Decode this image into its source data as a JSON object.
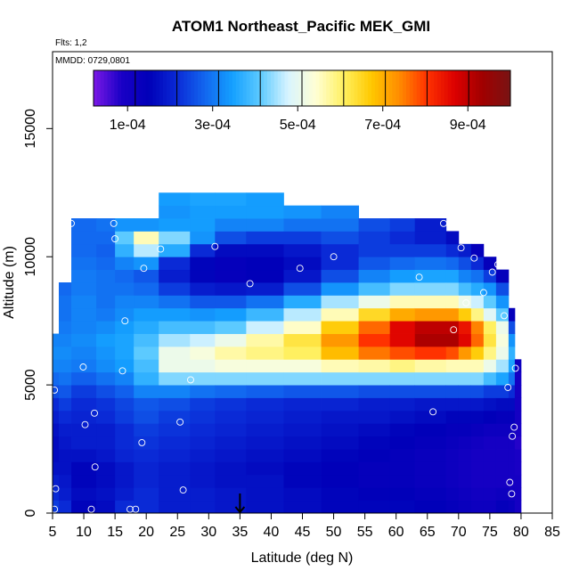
{
  "chart_data": {
    "type": "heatmap",
    "title": "ATOM1 Northeast_Pacific MEK_GMI",
    "notes": [
      "Flts: 1,2",
      "MMDD: 0729,0801"
    ],
    "xlabel": "Latitude (deg N)",
    "ylabel": "Altitude (m)",
    "xlim": [
      5,
      85
    ],
    "ylim": [
      0,
      18000
    ],
    "xticks": [
      5,
      10,
      15,
      20,
      25,
      30,
      35,
      40,
      45,
      50,
      55,
      60,
      65,
      70,
      75,
      80,
      85
    ],
    "yticks": [
      0,
      5000,
      10000,
      15000
    ],
    "grid": false,
    "colorbar": {
      "min": 2e-05,
      "max": 0.001,
      "ticks": [
        0.0001,
        0.0003,
        0.0005,
        0.0007,
        0.0009
      ],
      "tick_labels": [
        "1e-04",
        "3e-04",
        "5e-04",
        "7e-04",
        "9e-04"
      ],
      "colors": [
        "#7b18e6",
        "#1a00c6",
        "#0000b8",
        "#0a2ad6",
        "#1266ef",
        "#14a0ff",
        "#5ccaff",
        "#d8f4ff",
        "#ffffd4",
        "#fff060",
        "#ffc800",
        "#ff8c00",
        "#ff3200",
        "#dc0000",
        "#a00000",
        "#781414"
      ]
    },
    "arrow_marker_x": 35,
    "value_scale": "fraction of colorbar range (0 = 2e-05, 1 = 1e-03)",
    "columns": [
      {
        "x0": 5,
        "x1": 6,
        "ymax": 7000,
        "v": [
          0.22,
          0.2,
          0.18,
          0.16,
          0.15,
          0.15,
          0.16,
          0.18,
          0.2,
          0.24,
          0.27,
          0.3,
          0.31,
          0.3
        ]
      },
      {
        "x0": 6,
        "x1": 8,
        "ymax": 9000,
        "v": [
          0.2,
          0.18,
          0.17,
          0.16,
          0.16,
          0.17,
          0.18,
          0.2,
          0.22,
          0.25,
          0.28,
          0.3,
          0.31,
          0.3,
          0.29,
          0.28,
          0.28,
          0.27
        ]
      },
      {
        "x0": 8,
        "x1": 12,
        "ymax": 11500,
        "v": [
          0.14,
          0.15,
          0.14,
          0.14,
          0.16,
          0.18,
          0.18,
          0.19,
          0.2,
          0.22,
          0.26,
          0.29,
          0.3,
          0.31,
          0.3,
          0.3,
          0.3,
          0.29,
          0.29,
          0.28,
          0.27,
          0.27,
          0.27
        ]
      },
      {
        "x0": 12,
        "x1": 15,
        "ymax": 11500,
        "v": [
          0.15,
          0.16,
          0.15,
          0.15,
          0.17,
          0.18,
          0.18,
          0.2,
          0.21,
          0.24,
          0.28,
          0.31,
          0.32,
          0.33,
          0.31,
          0.29,
          0.28,
          0.28,
          0.28,
          0.27,
          0.26,
          0.27,
          0.28
        ]
      },
      {
        "x0": 15,
        "x1": 18,
        "ymax": 11500,
        "v": [
          0.2,
          0.18,
          0.17,
          0.17,
          0.19,
          0.2,
          0.2,
          0.22,
          0.23,
          0.26,
          0.3,
          0.33,
          0.34,
          0.34,
          0.33,
          0.31,
          0.3,
          0.28,
          0.27,
          0.3,
          0.36,
          0.4,
          0.32
        ]
      },
      {
        "x0": 18,
        "x1": 22,
        "ymax": 11500,
        "v": [
          0.2,
          0.2,
          0.19,
          0.19,
          0.2,
          0.21,
          0.22,
          0.24,
          0.25,
          0.3,
          0.36,
          0.38,
          0.4,
          0.38,
          0.35,
          0.33,
          0.3,
          0.27,
          0.25,
          0.32,
          0.45,
          0.55,
          0.32
        ]
      },
      {
        "x0": 22,
        "x1": 27,
        "ymax": 12500,
        "v": [
          0.18,
          0.18,
          0.18,
          0.18,
          0.19,
          0.2,
          0.21,
          0.22,
          0.24,
          0.3,
          0.42,
          0.5,
          0.5,
          0.44,
          0.38,
          0.33,
          0.28,
          0.22,
          0.18,
          0.2,
          0.35,
          0.42,
          0.33,
          0.32,
          0.33
        ]
      },
      {
        "x0": 27,
        "x1": 31,
        "ymax": 12500,
        "v": [
          0.18,
          0.18,
          0.17,
          0.17,
          0.18,
          0.19,
          0.2,
          0.21,
          0.22,
          0.28,
          0.42,
          0.5,
          0.52,
          0.46,
          0.38,
          0.32,
          0.25,
          0.18,
          0.14,
          0.14,
          0.2,
          0.32,
          0.33,
          0.33,
          0.34
        ]
      },
      {
        "x0": 31,
        "x1": 36,
        "ymax": 12500,
        "v": [
          0.17,
          0.17,
          0.16,
          0.16,
          0.17,
          0.18,
          0.19,
          0.2,
          0.21,
          0.27,
          0.42,
          0.52,
          0.56,
          0.5,
          0.4,
          0.33,
          0.25,
          0.17,
          0.12,
          0.12,
          0.15,
          0.24,
          0.3,
          0.33,
          0.34
        ]
      },
      {
        "x0": 36,
        "x1": 42,
        "ymax": 12500,
        "v": [
          0.16,
          0.16,
          0.16,
          0.15,
          0.16,
          0.17,
          0.18,
          0.19,
          0.2,
          0.26,
          0.42,
          0.52,
          0.58,
          0.56,
          0.46,
          0.37,
          0.28,
          0.18,
          0.13,
          0.13,
          0.15,
          0.22,
          0.3,
          0.33,
          0.33
        ]
      },
      {
        "x0": 42,
        "x1": 48,
        "ymax": 12000,
        "v": [
          0.15,
          0.15,
          0.14,
          0.14,
          0.15,
          0.16,
          0.17,
          0.18,
          0.19,
          0.25,
          0.42,
          0.52,
          0.6,
          0.62,
          0.54,
          0.45,
          0.35,
          0.24,
          0.17,
          0.15,
          0.17,
          0.22,
          0.28,
          0.32
        ]
      },
      {
        "x0": 48,
        "x1": 54,
        "ymax": 12000,
        "v": [
          0.14,
          0.14,
          0.13,
          0.13,
          0.14,
          0.15,
          0.16,
          0.17,
          0.19,
          0.25,
          0.42,
          0.55,
          0.68,
          0.72,
          0.66,
          0.55,
          0.44,
          0.32,
          0.24,
          0.2,
          0.2,
          0.24,
          0.28,
          0.3
        ]
      },
      {
        "x0": 54,
        "x1": 59,
        "ymax": 11500,
        "v": [
          0.14,
          0.13,
          0.12,
          0.12,
          0.13,
          0.14,
          0.15,
          0.17,
          0.18,
          0.24,
          0.42,
          0.56,
          0.75,
          0.8,
          0.76,
          0.64,
          0.5,
          0.38,
          0.3,
          0.25,
          0.22,
          0.22,
          0.24
        ]
      },
      {
        "x0": 59,
        "x1": 63,
        "ymax": 11500,
        "v": [
          0.14,
          0.13,
          0.12,
          0.12,
          0.12,
          0.13,
          0.14,
          0.16,
          0.18,
          0.24,
          0.42,
          0.58,
          0.78,
          0.86,
          0.86,
          0.7,
          0.55,
          0.42,
          0.33,
          0.27,
          0.22,
          0.2,
          0.22
        ]
      },
      {
        "x0": 63,
        "x1": 68,
        "ymax": 11500,
        "v": [
          0.13,
          0.12,
          0.11,
          0.11,
          0.11,
          0.12,
          0.13,
          0.15,
          0.17,
          0.24,
          0.42,
          0.56,
          0.8,
          0.92,
          0.9,
          0.72,
          0.55,
          0.42,
          0.34,
          0.28,
          0.22,
          0.18,
          0.18
        ]
      },
      {
        "x0": 68,
        "x1": 70,
        "ymax": 11000,
        "v": [
          0.12,
          0.11,
          0.1,
          0.1,
          0.1,
          0.11,
          0.12,
          0.14,
          0.17,
          0.24,
          0.42,
          0.55,
          0.78,
          0.92,
          0.9,
          0.72,
          0.55,
          0.42,
          0.34,
          0.27,
          0.2,
          0.15
        ]
      },
      {
        "x0": 70,
        "x1": 72,
        "ymax": 10500,
        "v": [
          0.11,
          0.1,
          0.09,
          0.09,
          0.09,
          0.1,
          0.12,
          0.14,
          0.17,
          0.24,
          0.42,
          0.55,
          0.72,
          0.86,
          0.84,
          0.66,
          0.5,
          0.38,
          0.3,
          0.24,
          0.18
        ]
      },
      {
        "x0": 72,
        "x1": 74,
        "ymax": 10500,
        "v": [
          0.1,
          0.09,
          0.08,
          0.08,
          0.08,
          0.09,
          0.11,
          0.14,
          0.17,
          0.24,
          0.42,
          0.55,
          0.66,
          0.76,
          0.74,
          0.58,
          0.46,
          0.35,
          0.28,
          0.2,
          0.12
        ]
      },
      {
        "x0": 74,
        "x1": 76,
        "ymax": 10000,
        "v": [
          0.1,
          0.09,
          0.08,
          0.08,
          0.08,
          0.08,
          0.1,
          0.13,
          0.16,
          0.22,
          0.38,
          0.5,
          0.58,
          0.62,
          0.6,
          0.48,
          0.4,
          0.32,
          0.22,
          0.12
        ]
      },
      {
        "x0": 76,
        "x1": 78,
        "ymax": 9500,
        "v": [
          0.12,
          0.1,
          0.08,
          0.08,
          0.08,
          0.08,
          0.1,
          0.12,
          0.15,
          0.22,
          0.34,
          0.44,
          0.5,
          0.52,
          0.5,
          0.4,
          0.32,
          0.24,
          0.12
        ]
      },
      {
        "x0": 78,
        "x1": 79,
        "ymax": 8000,
        "v": [
          0.11,
          0.09,
          0.08,
          0.08,
          0.08,
          0.08,
          0.1,
          0.12,
          0.15,
          0.2,
          0.28,
          0.34,
          0.36,
          0.32,
          0.24,
          0.12
        ]
      },
      {
        "x0": 79,
        "x1": 80,
        "ymax": 6000,
        "v": [
          0.08,
          0.08,
          0.08,
          0.07,
          0.07,
          0.06,
          0.07,
          0.08,
          0.08,
          0.08,
          0.08,
          0.1
        ]
      }
    ],
    "points": [
      {
        "x": 5.3,
        "y": 150
      },
      {
        "x": 5.5,
        "y": 950
      },
      {
        "x": 5.3,
        "y": 4800
      },
      {
        "x": 8.0,
        "y": 11300
      },
      {
        "x": 9.9,
        "y": 5700
      },
      {
        "x": 10.2,
        "y": 3450
      },
      {
        "x": 11.2,
        "y": 150
      },
      {
        "x": 11.8,
        "y": 1800
      },
      {
        "x": 11.7,
        "y": 3900
      },
      {
        "x": 14.8,
        "y": 11300
      },
      {
        "x": 15.0,
        "y": 10700
      },
      {
        "x": 16.2,
        "y": 5550
      },
      {
        "x": 16.6,
        "y": 7500
      },
      {
        "x": 17.4,
        "y": 150
      },
      {
        "x": 18.3,
        "y": 150
      },
      {
        "x": 19.3,
        "y": 2750
      },
      {
        "x": 19.6,
        "y": 9550
      },
      {
        "x": 22.3,
        "y": 10300
      },
      {
        "x": 25.4,
        "y": 3550
      },
      {
        "x": 25.9,
        "y": 900
      },
      {
        "x": 27.1,
        "y": 5200
      },
      {
        "x": 27.5,
        "y": 12700
      },
      {
        "x": 31.0,
        "y": 10400
      },
      {
        "x": 36.6,
        "y": 8950
      },
      {
        "x": 44.6,
        "y": 9550
      },
      {
        "x": 50.0,
        "y": 10000
      },
      {
        "x": 63.7,
        "y": 9200
      },
      {
        "x": 65.9,
        "y": 3950
      },
      {
        "x": 67.6,
        "y": 11300
      },
      {
        "x": 69.2,
        "y": 7150
      },
      {
        "x": 70.4,
        "y": 10350
      },
      {
        "x": 71.2,
        "y": 8200
      },
      {
        "x": 72.5,
        "y": 9950
      },
      {
        "x": 74.0,
        "y": 8600
      },
      {
        "x": 75.4,
        "y": 9400
      },
      {
        "x": 76.3,
        "y": 9700
      },
      {
        "x": 77.3,
        "y": 7700
      },
      {
        "x": 77.9,
        "y": 4900
      },
      {
        "x": 78.2,
        "y": 1200
      },
      {
        "x": 78.5,
        "y": 750
      },
      {
        "x": 78.6,
        "y": 3000
      },
      {
        "x": 78.9,
        "y": 3350
      },
      {
        "x": 79.1,
        "y": 5650
      }
    ]
  }
}
